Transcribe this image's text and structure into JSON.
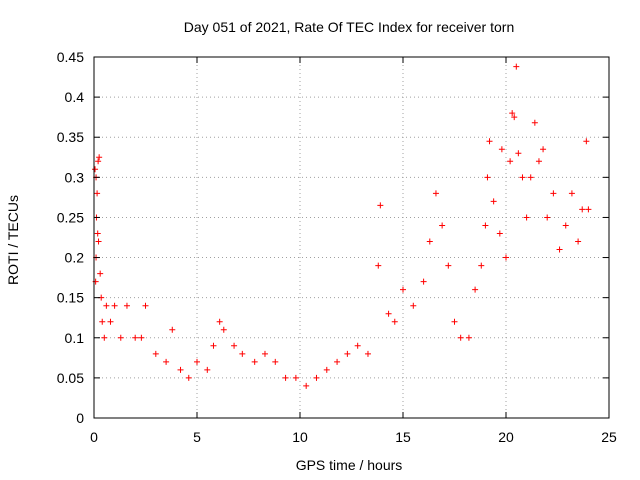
{
  "chart_data": {
    "type": "scatter",
    "title": "Day 051 of 2021, Rate Of TEC Index for receiver torn",
    "xlabel": "GPS time / hours",
    "ylabel": "ROTI / TECUs",
    "xlim": [
      0,
      25
    ],
    "ylim": [
      0,
      0.45
    ],
    "xticks": [
      "0",
      "5",
      "10",
      "15",
      "20",
      "25"
    ],
    "yticks": [
      "0",
      "0.05",
      "0.1",
      "0.15",
      "0.2",
      "0.25",
      "0.3",
      "0.35",
      "0.4",
      "0.45"
    ],
    "grid": true,
    "marker": "+",
    "color": "#ff0000",
    "series": [
      {
        "name": "ROTI",
        "points": [
          [
            0.05,
            0.31
          ],
          [
            0.1,
            0.3
          ],
          [
            0.15,
            0.28
          ],
          [
            0.2,
            0.32
          ],
          [
            0.25,
            0.325
          ],
          [
            0.12,
            0.25
          ],
          [
            0.18,
            0.23
          ],
          [
            0.22,
            0.22
          ],
          [
            0.1,
            0.2
          ],
          [
            0.3,
            0.18
          ],
          [
            0.35,
            0.15
          ],
          [
            0.08,
            0.17
          ],
          [
            0.4,
            0.12
          ],
          [
            0.5,
            0.1
          ],
          [
            0.6,
            0.14
          ],
          [
            0.8,
            0.12
          ],
          [
            1.0,
            0.14
          ],
          [
            1.3,
            0.1
          ],
          [
            1.6,
            0.14
          ],
          [
            2.0,
            0.1
          ],
          [
            2.3,
            0.1
          ],
          [
            2.5,
            0.14
          ],
          [
            3.0,
            0.08
          ],
          [
            3.5,
            0.07
          ],
          [
            3.8,
            0.11
          ],
          [
            4.2,
            0.06
          ],
          [
            4.6,
            0.05
          ],
          [
            5.0,
            0.07
          ],
          [
            5.5,
            0.06
          ],
          [
            5.8,
            0.09
          ],
          [
            6.1,
            0.12
          ],
          [
            6.3,
            0.11
          ],
          [
            6.8,
            0.09
          ],
          [
            7.2,
            0.08
          ],
          [
            7.8,
            0.07
          ],
          [
            8.3,
            0.08
          ],
          [
            8.8,
            0.07
          ],
          [
            9.3,
            0.05
          ],
          [
            9.8,
            0.05
          ],
          [
            10.3,
            0.04
          ],
          [
            10.8,
            0.05
          ],
          [
            11.3,
            0.06
          ],
          [
            11.8,
            0.07
          ],
          [
            12.3,
            0.08
          ],
          [
            12.8,
            0.09
          ],
          [
            13.3,
            0.08
          ],
          [
            13.8,
            0.19
          ],
          [
            13.9,
            0.265
          ],
          [
            14.3,
            0.13
          ],
          [
            14.6,
            0.12
          ],
          [
            15.0,
            0.16
          ],
          [
            15.5,
            0.14
          ],
          [
            16.0,
            0.17
          ],
          [
            16.3,
            0.22
          ],
          [
            16.6,
            0.28
          ],
          [
            16.9,
            0.24
          ],
          [
            17.2,
            0.19
          ],
          [
            17.5,
            0.12
          ],
          [
            17.8,
            0.1
          ],
          [
            18.2,
            0.1
          ],
          [
            18.5,
            0.16
          ],
          [
            18.8,
            0.19
          ],
          [
            19.0,
            0.24
          ],
          [
            19.1,
            0.3
          ],
          [
            19.2,
            0.345
          ],
          [
            19.4,
            0.27
          ],
          [
            19.7,
            0.23
          ],
          [
            19.8,
            0.335
          ],
          [
            20.0,
            0.2
          ],
          [
            20.2,
            0.32
          ],
          [
            20.3,
            0.38
          ],
          [
            20.4,
            0.375
          ],
          [
            20.5,
            0.438
          ],
          [
            20.6,
            0.33
          ],
          [
            20.8,
            0.3
          ],
          [
            21.0,
            0.25
          ],
          [
            21.2,
            0.3
          ],
          [
            21.4,
            0.368
          ],
          [
            21.6,
            0.32
          ],
          [
            21.8,
            0.335
          ],
          [
            22.0,
            0.25
          ],
          [
            22.3,
            0.28
          ],
          [
            22.6,
            0.21
          ],
          [
            22.9,
            0.24
          ],
          [
            23.2,
            0.28
          ],
          [
            23.5,
            0.22
          ],
          [
            23.7,
            0.26
          ],
          [
            23.9,
            0.345
          ],
          [
            24.0,
            0.26
          ]
        ]
      }
    ]
  }
}
